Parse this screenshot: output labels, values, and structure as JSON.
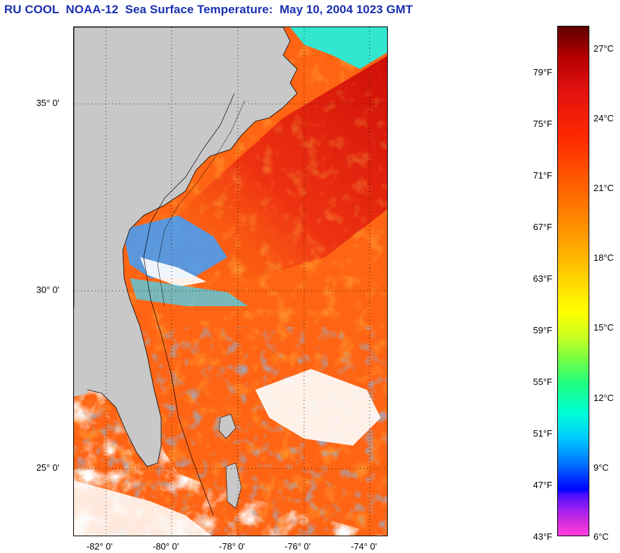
{
  "title": "RU COOL  NOAA-12  Sea Surface Temperature:  May 10, 2004 1023 GMT",
  "map": {
    "latitude_labels": [
      "35° 0'",
      "30° 0'",
      "25° 0'"
    ],
    "longitude_labels": [
      "-82° 0'",
      "-80° 0'",
      "-78° 0'",
      "-76° 0'",
      "-74° 0'"
    ],
    "colors": {
      "land": "#c8c8c8",
      "cloud": "#ffffff",
      "warm_water": "#ff5a10",
      "gulf_stream": "#e51212",
      "cool_water": "#3fa0ff",
      "coastal_cold": "#30e0ff"
    }
  },
  "colorbar": {
    "fahrenheit_labels": [
      "79°F",
      "75°F",
      "71°F",
      "67°F",
      "63°F",
      "59°F",
      "55°F",
      "51°F",
      "47°F",
      "43°F"
    ],
    "celsius_labels": [
      "27°C",
      "24°C",
      "21°C",
      "18°C",
      "15°C",
      "12°C",
      "9°C",
      "6°C"
    ]
  }
}
